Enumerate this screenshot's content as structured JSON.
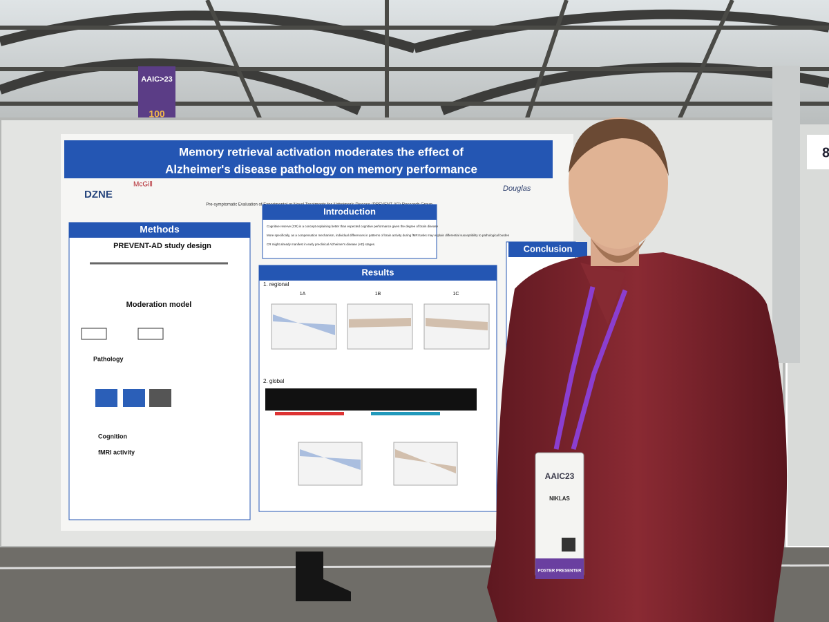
{
  "banner": {
    "brand": "AAIC>23",
    "number": "100"
  },
  "board_number": "8",
  "poster": {
    "title": [
      "Memory retrieval activation moderates the effect of",
      "Alzheimer's disease pathology on memory performance"
    ],
    "logos": [
      "DZNE",
      "McGill",
      "Douglas"
    ],
    "group": "Pre-symptomatic Evaluation of Experimental or Novel Treatments for Alzheimer's Disease (PREVENT-AD) Research Group",
    "methods": {
      "heading": "Methods",
      "study_design": "PREVENT-AD study design",
      "moderation_model": "Moderation model",
      "pathology": "Pathology",
      "cognition": "Cognition",
      "fmri": "fMRI activity"
    },
    "introduction": {
      "heading": "Introduction",
      "bullets": [
        "Cognitive reserve (CR) is a concept explaining better than expected cognitive performance given the degree of brain disease",
        "More specifically, as a compensation mechanism, individual differences in patterns of brain activity during fMRI tasks may explain differential susceptibility to pathological burden",
        "CR might already manifest in early preclinical Alzheimer's disease (AD) stages."
      ]
    },
    "results": {
      "heading": "Results",
      "regional": "1. regional",
      "panels": [
        "1A",
        "1B",
        "1C"
      ],
      "global": "2. global"
    },
    "conclusion": {
      "heading": "Conclusion"
    }
  },
  "badge": {
    "conference": "AAIC23",
    "name": "NIKLAS",
    "role": "POSTER PRESENTER"
  }
}
